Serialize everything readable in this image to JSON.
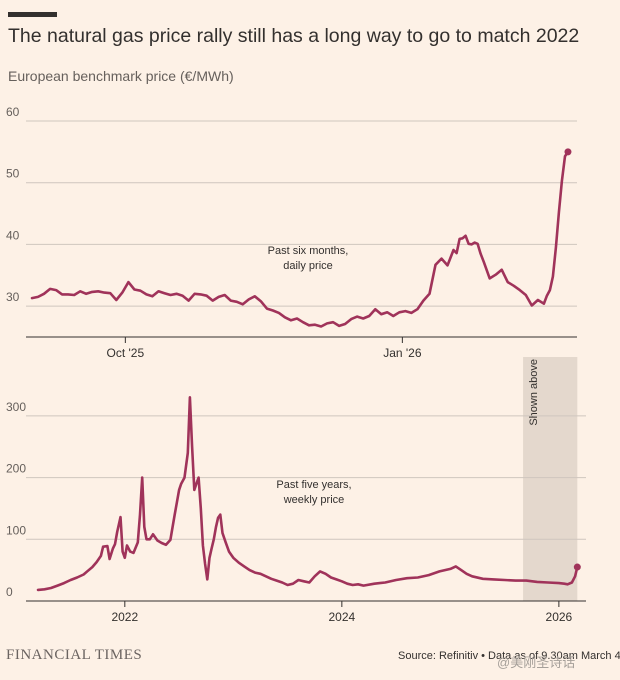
{
  "header": {
    "title": "The natural gas price rally still has a long way to go to match 2022",
    "subtitle": "European benchmark price (€/MWh)"
  },
  "footer": {
    "brand": "FINANCIAL TIMES",
    "source": "Source: Refinitiv • Data as of 9.30am March 4",
    "watermark": "@美刚圣诗话"
  },
  "colors": {
    "background": "#fdf1e6",
    "line": "#a0335a",
    "grid": "#cfc6be",
    "shade": "#e4d8cd"
  },
  "chart_data": [
    {
      "type": "line",
      "title": "Past six months, daily price",
      "annotation": [
        "Past six months,",
        "daily price"
      ],
      "xlabel": "",
      "ylabel": "European benchmark price (€/MWh)",
      "ylim": [
        25,
        60
      ],
      "yticks": [
        30,
        40,
        50,
        60
      ],
      "xlim": [
        0,
        181
      ],
      "xticks": [
        {
          "label": "Oct '25",
          "x": 31
        },
        {
          "label": "Jan '26",
          "x": 123
        }
      ],
      "series": [
        {
          "name": "Daily price",
          "x": [
            0,
            2,
            4,
            6,
            8,
            10,
            12,
            14,
            16,
            18,
            20,
            22,
            24,
            26,
            28,
            30,
            32,
            34,
            36,
            38,
            40,
            42,
            44,
            46,
            48,
            50,
            52,
            54,
            56,
            58,
            60,
            62,
            64,
            66,
            68,
            70,
            72,
            74,
            76,
            78,
            80,
            82,
            84,
            86,
            88,
            90,
            92,
            94,
            96,
            98,
            100,
            102,
            104,
            106,
            108,
            110,
            112,
            114,
            116,
            118,
            120,
            122,
            124,
            126,
            128,
            130,
            132,
            134,
            136,
            138,
            140,
            141,
            142,
            143,
            144,
            145,
            146,
            147,
            148,
            149,
            150,
            152,
            154,
            156,
            158,
            160,
            162,
            164,
            166,
            168,
            170,
            171,
            172,
            173,
            174,
            175,
            176,
            177,
            178
          ],
          "values": [
            31.3,
            31.5,
            32.0,
            32.8,
            32.6,
            31.9,
            31.9,
            31.8,
            32.4,
            32.0,
            32.3,
            32.4,
            32.2,
            32.1,
            31.0,
            32.2,
            33.9,
            32.7,
            32.5,
            31.9,
            31.6,
            32.4,
            32.1,
            31.8,
            32.0,
            31.7,
            30.9,
            32.0,
            31.9,
            31.7,
            30.9,
            31.5,
            31.8,
            30.9,
            30.7,
            30.3,
            31.1,
            31.6,
            30.8,
            29.6,
            29.3,
            28.9,
            28.2,
            27.7,
            28.0,
            27.4,
            26.9,
            27.0,
            26.7,
            27.2,
            27.4,
            26.8,
            27.1,
            27.9,
            28.3,
            28.0,
            28.4,
            29.5,
            28.7,
            29.0,
            28.4,
            29.0,
            29.2,
            28.9,
            29.5,
            30.9,
            32.0,
            36.7,
            37.7,
            36.6,
            39.1,
            38.6,
            40.9,
            41.0,
            41.4,
            40.1,
            40.0,
            40.3,
            40.1,
            38.5,
            37.2,
            34.5,
            35.1,
            35.9,
            33.9,
            33.3,
            32.6,
            31.8,
            30.1,
            31.0,
            30.4,
            31.7,
            32.6,
            34.8,
            39.5,
            45.2,
            50.3,
            54.3,
            55.0
          ]
        }
      ]
    },
    {
      "type": "line",
      "title": "Past five years, weekly price",
      "annotation": [
        "Past five years,",
        "weekly price"
      ],
      "shaded_region_label": "Shown above",
      "xlabel": "",
      "ylabel": "European benchmark price (€/MWh)",
      "ylim": [
        0,
        350
      ],
      "yticks": [
        0,
        100,
        200,
        300
      ],
      "xlim": [
        2021.2,
        2026.25
      ],
      "xticks": [
        2022,
        2024,
        2026
      ],
      "shaded_region": [
        2025.67,
        2026.17
      ],
      "series": [
        {
          "name": "Weekly price",
          "x": [
            2021.2,
            2021.26,
            2021.32,
            2021.38,
            2021.44,
            2021.5,
            2021.56,
            2021.62,
            2021.66,
            2021.7,
            2021.74,
            2021.78,
            2021.8,
            2021.84,
            2021.86,
            2021.89,
            2021.91,
            2021.93,
            2021.96,
            2021.98,
            2022.0,
            2022.02,
            2022.05,
            2022.08,
            2022.12,
            2022.14,
            2022.16,
            2022.18,
            2022.2,
            2022.23,
            2022.26,
            2022.3,
            2022.34,
            2022.38,
            2022.42,
            2022.44,
            2022.46,
            2022.48,
            2022.5,
            2022.52,
            2022.55,
            2022.58,
            2022.6,
            2022.62,
            2022.64,
            2022.66,
            2022.68,
            2022.7,
            2022.72,
            2022.74,
            2022.76,
            2022.78,
            2022.8,
            2022.82,
            2022.84,
            2022.86,
            2022.88,
            2022.9,
            2022.93,
            2022.96,
            2023.0,
            2023.05,
            2023.1,
            2023.15,
            2023.2,
            2023.25,
            2023.3,
            2023.35,
            2023.4,
            2023.45,
            2023.5,
            2023.55,
            2023.6,
            2023.65,
            2023.7,
            2023.75,
            2023.8,
            2023.85,
            2023.9,
            2023.95,
            2024.0,
            2024.05,
            2024.1,
            2024.15,
            2024.2,
            2024.3,
            2024.4,
            2024.5,
            2024.6,
            2024.7,
            2024.8,
            2024.9,
            2025.0,
            2025.05,
            2025.1,
            2025.15,
            2025.2,
            2025.3,
            2025.4,
            2025.5,
            2025.6,
            2025.7,
            2025.8,
            2025.9,
            2026.0,
            2026.05,
            2026.08,
            2026.12,
            2026.15,
            2026.17
          ],
          "values": [
            18,
            19,
            21,
            25,
            29,
            34,
            38,
            43,
            49,
            55,
            63,
            73,
            88,
            89,
            68,
            85,
            92,
            112,
            136,
            80,
            70,
            90,
            80,
            78,
            95,
            140,
            200,
            120,
            100,
            100,
            108,
            98,
            94,
            91,
            99,
            120,
            140,
            160,
            180,
            190,
            200,
            240,
            330,
            250,
            180,
            190,
            200,
            150,
            90,
            60,
            35,
            70,
            85,
            100,
            120,
            135,
            140,
            110,
            95,
            80,
            70,
            62,
            56,
            50,
            46,
            44,
            40,
            36,
            33,
            30,
            26,
            28,
            34,
            32,
            30,
            40,
            48,
            44,
            38,
            35,
            32,
            28,
            26,
            27,
            25,
            28,
            30,
            34,
            37,
            38,
            42,
            48,
            52,
            56,
            50,
            44,
            40,
            36,
            35,
            34,
            33,
            33,
            31,
            30,
            29,
            28,
            27,
            30,
            40,
            55
          ]
        }
      ]
    }
  ]
}
